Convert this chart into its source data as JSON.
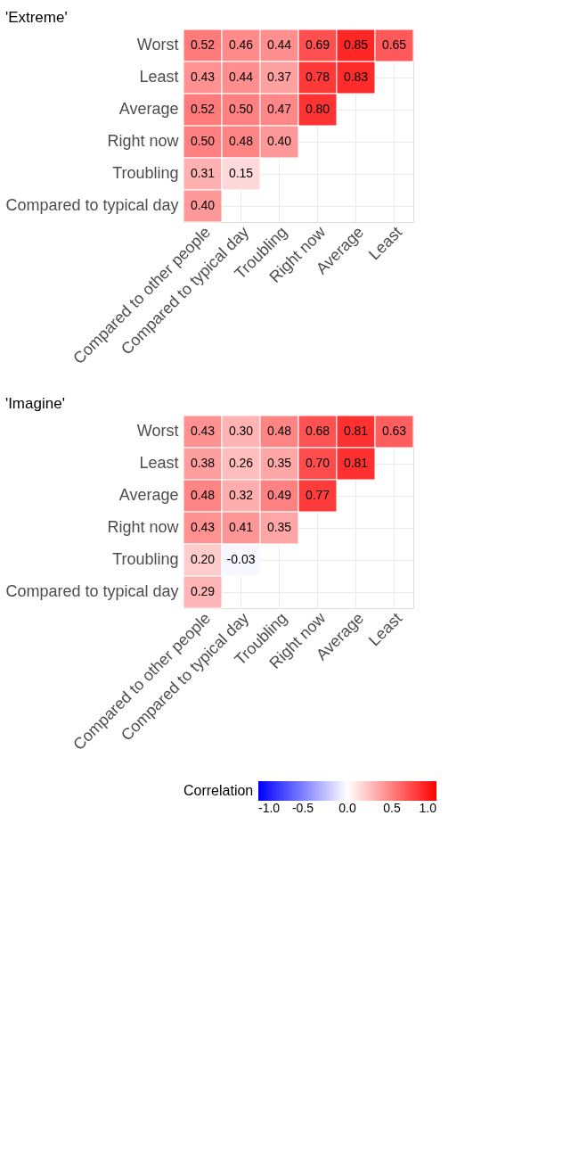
{
  "chart_data": [
    {
      "type": "heatmap",
      "title": "'Extreme'",
      "categories": [
        "Compared to other people",
        "Compared to typical day",
        "Troubling",
        "Right now",
        "Average",
        "Least"
      ],
      "y_categories": [
        "Worst",
        "Least",
        "Average",
        "Right now",
        "Troubling",
        "Compared to typical day"
      ],
      "cells": [
        [
          0.52,
          0.46,
          0.44,
          0.69,
          0.85,
          0.65
        ],
        [
          0.43,
          0.44,
          0.37,
          0.78,
          0.83,
          null
        ],
        [
          0.52,
          0.5,
          0.47,
          0.8,
          null,
          null
        ],
        [
          0.5,
          0.48,
          0.4,
          null,
          null,
          null
        ],
        [
          0.31,
          0.15,
          null,
          null,
          null,
          null
        ],
        [
          0.4,
          null,
          null,
          null,
          null,
          null
        ]
      ],
      "cell_labels": [
        [
          "0.52",
          "0.46",
          "0.44",
          "0.69",
          "0.85",
          "0.65"
        ],
        [
          "0.43",
          "0.44",
          "0.37",
          "0.78",
          "0.83",
          null
        ],
        [
          "0.52",
          "0.50",
          "0.47",
          "0.80",
          null,
          null
        ],
        [
          "0.50",
          "0.48",
          "0.40",
          null,
          null,
          null
        ],
        [
          "0.31",
          "0.15",
          null,
          null,
          null,
          null
        ],
        [
          "0.40",
          null,
          null,
          null,
          null,
          null
        ]
      ],
      "grid": true
    },
    {
      "type": "heatmap",
      "title": "'Imagine'",
      "categories": [
        "Compared to other people",
        "Compared to typical day",
        "Troubling",
        "Right now",
        "Average",
        "Least"
      ],
      "y_categories": [
        "Worst",
        "Least",
        "Average",
        "Right now",
        "Troubling",
        "Compared to typical day"
      ],
      "cells": [
        [
          0.43,
          0.3,
          0.48,
          0.68,
          0.81,
          0.63
        ],
        [
          0.38,
          0.26,
          0.35,
          0.7,
          0.81,
          null
        ],
        [
          0.48,
          0.32,
          0.49,
          0.77,
          null,
          null
        ],
        [
          0.43,
          0.41,
          0.35,
          null,
          null,
          null
        ],
        [
          0.2,
          -0.03,
          null,
          null,
          null,
          null
        ],
        [
          0.29,
          null,
          null,
          null,
          null,
          null
        ]
      ],
      "cell_labels": [
        [
          "0.43",
          "0.30",
          "0.48",
          "0.68",
          "0.81",
          "0.63"
        ],
        [
          "0.38",
          "0.26",
          "0.35",
          "0.70",
          "0.81",
          null
        ],
        [
          "0.48",
          "0.32",
          "0.49",
          "0.77",
          null,
          null
        ],
        [
          "0.43",
          "0.41",
          "0.35",
          null,
          null,
          null
        ],
        [
          "0.20",
          "-0.03",
          null,
          null,
          null,
          null
        ],
        [
          "0.29",
          null,
          null,
          null,
          null,
          null
        ]
      ],
      "clim": [
        -1,
        1
      ],
      "cticks": [
        {
          "value": -1,
          "label": "-1.0"
        },
        {
          "value": -0.5,
          "label": "-0.5"
        },
        {
          "value": 0,
          "label": "0.0"
        },
        {
          "value": 0.5,
          "label": "0.5"
        },
        {
          "value": 1,
          "label": "1.0"
        }
      ],
      "clabel": "Correlation",
      "grid": true
    }
  ]
}
